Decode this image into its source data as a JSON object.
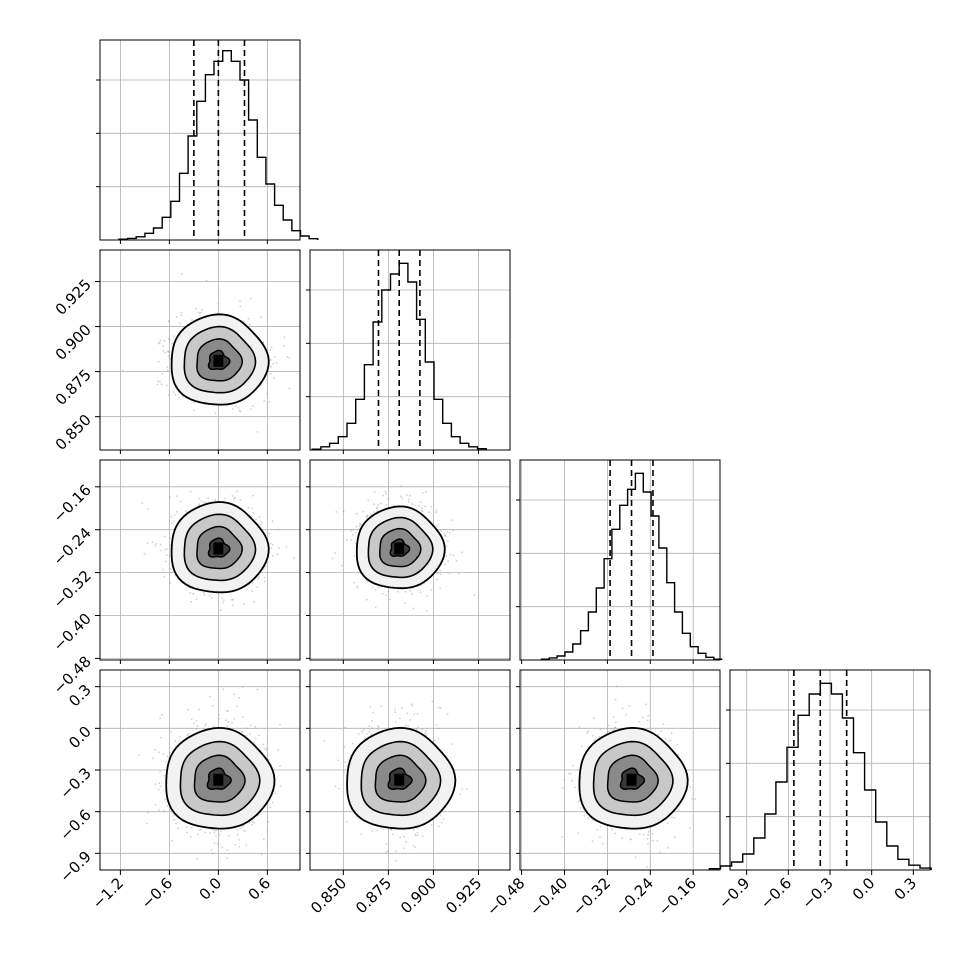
{
  "chart_data": {
    "type": "corner",
    "grid": true,
    "dashed_quantiles": [
      0.16,
      0.5,
      0.84
    ],
    "parameters": [
      {
        "range": [
          -1.45,
          1.0
        ],
        "ticks": [
          "-1.2",
          "-0.6",
          "0.0",
          "0.6"
        ],
        "tick_values": [
          -1.2,
          -0.6,
          0.0,
          0.6
        ],
        "median": 0.0,
        "sigma": 0.29,
        "hist_values": [
          0.3,
          0.6,
          1.2,
          2.5,
          4.5,
          8.5,
          14.5,
          25,
          39,
          52,
          62,
          67,
          71,
          67,
          60,
          45,
          31,
          21,
          13,
          7.5,
          3.5,
          1.5,
          0.5
        ],
        "hist_ylim": [
          0,
          75
        ],
        "quantiles": [
          -0.3,
          0.0,
          0.32
        ]
      },
      {
        "range": [
          0.8315,
          0.9425
        ],
        "ticks": [
          "0.850",
          "0.875",
          "0.900",
          "0.925"
        ],
        "tick_values": [
          0.85,
          0.875,
          0.9,
          0.925
        ],
        "median": 0.881,
        "sigma": 0.0115,
        "hist_values": [
          0.3,
          1.2,
          2.5,
          5,
          10,
          19,
          32,
          48,
          60,
          66,
          70,
          63,
          49,
          33,
          19,
          10,
          5,
          2.5,
          1.2,
          0.5
        ],
        "hist_ylim": [
          0,
          75
        ],
        "quantiles": [
          0.8695,
          0.881,
          0.8925
        ]
      },
      {
        "range": [
          -0.483,
          -0.11
        ],
        "ticks": [
          "-0.48",
          "-0.40",
          "-0.32",
          "-0.24",
          "-0.16"
        ],
        "tick_values": [
          -0.48,
          -0.4,
          -0.32,
          -0.24,
          -0.16
        ],
        "median": -0.275,
        "sigma": 0.04,
        "hist_values": [
          0.3,
          0.8,
          1.5,
          3,
          6,
          11,
          18,
          27,
          38,
          49,
          58,
          64,
          70,
          63,
          54,
          42,
          29,
          18,
          10,
          5,
          2.5,
          1,
          0.3
        ],
        "hist_ylim": [
          0,
          75
        ],
        "quantiles": [
          -0.315,
          -0.275,
          -0.235
        ]
      },
      {
        "range": [
          -1.02,
          0.42
        ],
        "ticks": [
          "-0.9",
          "-0.6",
          "-0.3",
          "0.0",
          "0.3"
        ],
        "tick_values": [
          -0.9,
          -0.6,
          -0.3,
          0.0,
          0.3
        ],
        "median": -0.37,
        "sigma": 0.19,
        "hist_values": [
          0.5,
          1.5,
          3,
          6,
          12,
          21,
          33,
          46,
          58,
          66,
          70,
          66,
          57,
          44,
          30,
          18,
          9,
          4,
          1.8,
          0.7
        ],
        "hist_ylim": [
          0,
          75
        ],
        "quantiles": [
          -0.56,
          -0.37,
          -0.18
        ]
      }
    ],
    "left_axis_ticks": {
      "row1": [
        "0.850",
        "0.875",
        "0.900",
        "0.925"
      ],
      "row2": [
        "-0.48",
        "-0.40",
        "-0.32",
        "-0.24",
        "-0.16"
      ],
      "row3": [
        "-0.9",
        "-0.6",
        "-0.3",
        "0.0",
        "0.3"
      ]
    }
  }
}
